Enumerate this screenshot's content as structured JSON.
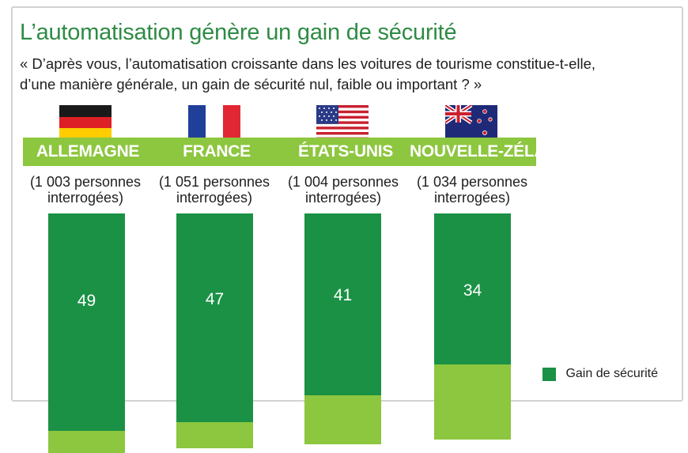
{
  "title": "L’automatisation génère un gain de sécurité",
  "question": {
    "line1": "« D’après vous, l’automatisation croissante dans les voitures de tourisme constitue-t-elle,",
    "line2": "d’une manière générale, un gain de sécurité nul, faible ou important ? »"
  },
  "legend": {
    "gain_label": "Gain de sécurité"
  },
  "colors": {
    "gain": "#1a9145",
    "secondary": "#8dc63f",
    "title": "#2e8b44"
  },
  "countries": [
    {
      "name": "ALLEMAGNE",
      "flag": "germany-flag-icon",
      "sample_line1": "(1 003 personnes",
      "sample_line2": "interrogées)"
    },
    {
      "name": "FRANCE",
      "flag": "france-flag-icon",
      "sample_line1": "(1 051 personnes",
      "sample_line2": "interrogées)"
    },
    {
      "name": "ÉTATS-UNIS",
      "flag": "usa-flag-icon",
      "sample_line1": "(1 004 personnes",
      "sample_line2": "interrogées)"
    },
    {
      "name": "NOUVELLE-ZÉLANDE",
      "flag": "new-zealand-flag-icon",
      "sample_line1": "(1 034 personnes",
      "sample_line2": "interrogées)"
    }
  ],
  "chart_data": {
    "type": "bar",
    "stacked": true,
    "categories": [
      "ALLEMAGNE",
      "FRANCE",
      "ÉTATS-UNIS",
      "NOUVELLE-ZÉLANDE"
    ],
    "series": [
      {
        "name": "Gain de sécurité",
        "values": [
          49,
          47,
          41,
          34
        ],
        "color": "#1a9145"
      }
    ],
    "unlabeled_segment": {
      "color": "#8dc63f",
      "visible_values": [
        5,
        6,
        11,
        17
      ]
    },
    "legend_position": "bottom-right",
    "grid": false
  }
}
